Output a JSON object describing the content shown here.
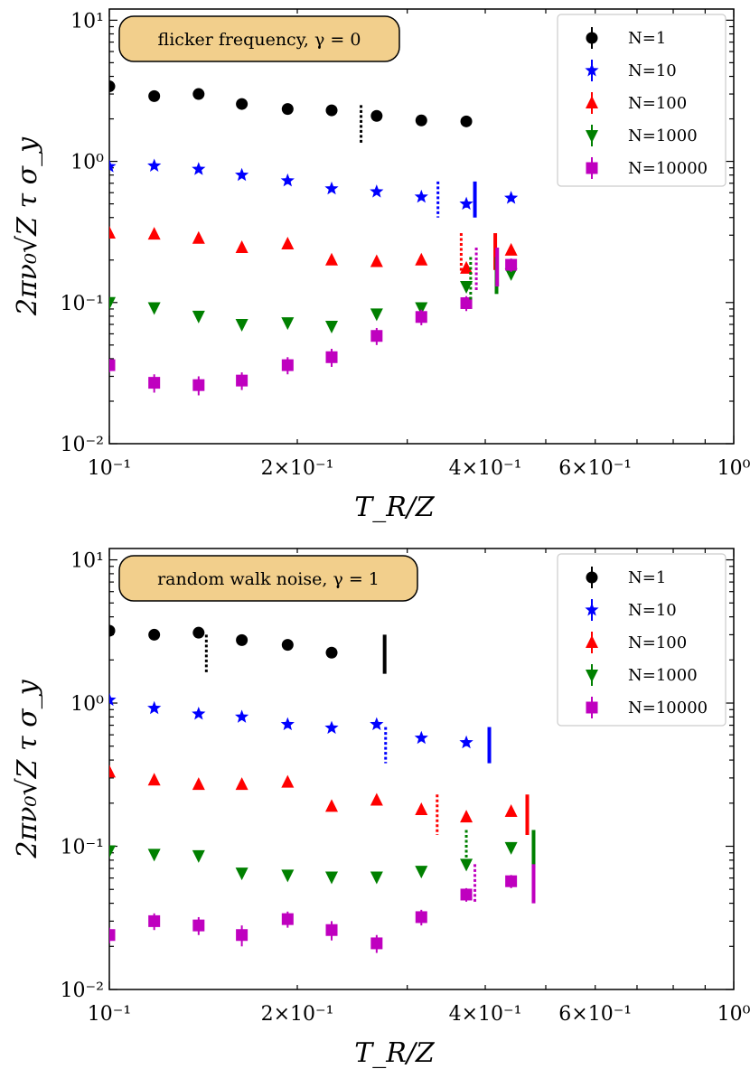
{
  "chart_data": [
    {
      "type": "scatter",
      "title": "",
      "annotation": "flicker frequency, γ = 0",
      "xlabel": "T_R/Z",
      "ylabel": "2πν₀√Z τ σ_y",
      "xscale": "log",
      "yscale": "log",
      "xlim": [
        0.1,
        1.0
      ],
      "ylim": [
        0.01,
        12
      ],
      "xtick_labels": [
        "10⁻¹",
        "2×10⁻¹",
        "4×10⁻¹",
        "6×10⁻¹",
        "10⁰"
      ],
      "xtick_values": [
        0.1,
        0.2,
        0.4,
        0.6,
        1.0
      ],
      "ytick_labels": [
        "10⁻²",
        "10⁻¹",
        "10⁰",
        "10¹"
      ],
      "ytick_values": [
        0.01,
        0.1,
        1,
        10
      ],
      "legend_position": "upper right",
      "series": [
        {
          "name": "N=1",
          "marker": "circle",
          "color": "#000000",
          "x": [
            0.1,
            0.118,
            0.139,
            0.163,
            0.193,
            0.227,
            0.268,
            0.316,
            0.373
          ],
          "y": [
            3.4,
            2.9,
            3.0,
            2.55,
            2.35,
            2.3,
            2.1,
            1.95,
            1.92
          ],
          "err": [
            0.15,
            0.12,
            0.12,
            0.1,
            0.1,
            0.1,
            0.1,
            0.08,
            0.08
          ]
        },
        {
          "name": "N=10",
          "marker": "star",
          "color": "#0000ff",
          "x": [
            0.1,
            0.118,
            0.139,
            0.163,
            0.193,
            0.227,
            0.268,
            0.316,
            0.373,
            0.44
          ],
          "y": [
            0.92,
            0.93,
            0.88,
            0.8,
            0.73,
            0.64,
            0.61,
            0.56,
            0.5,
            0.55
          ],
          "err": [
            0.04,
            0.04,
            0.04,
            0.04,
            0.04,
            0.03,
            0.03,
            0.03,
            0.03,
            0.03
          ]
        },
        {
          "name": "N=100",
          "marker": "triangle-up",
          "color": "#ff0000",
          "x": [
            0.1,
            0.118,
            0.139,
            0.163,
            0.193,
            0.227,
            0.268,
            0.316,
            0.373,
            0.44
          ],
          "y": [
            0.31,
            0.305,
            0.285,
            0.245,
            0.26,
            0.2,
            0.195,
            0.2,
            0.175,
            0.235
          ],
          "err": [
            0.015,
            0.015,
            0.015,
            0.012,
            0.012,
            0.01,
            0.01,
            0.01,
            0.012,
            0.015
          ]
        },
        {
          "name": "N=1000",
          "marker": "triangle-down",
          "color": "#008000",
          "x": [
            0.1,
            0.118,
            0.139,
            0.163,
            0.193,
            0.227,
            0.268,
            0.316,
            0.373,
            0.44
          ],
          "y": [
            0.1,
            0.092,
            0.08,
            0.07,
            0.072,
            0.068,
            0.083,
            0.092,
            0.13,
            0.16
          ],
          "err": [
            0.006,
            0.006,
            0.005,
            0.005,
            0.005,
            0.005,
            0.006,
            0.006,
            0.01,
            0.012
          ]
        },
        {
          "name": "N=10000",
          "marker": "square",
          "color": "#bf00bf",
          "x": [
            0.1,
            0.118,
            0.139,
            0.163,
            0.193,
            0.227,
            0.268,
            0.316,
            0.373,
            0.44
          ],
          "y": [
            0.036,
            0.027,
            0.026,
            0.028,
            0.036,
            0.041,
            0.058,
            0.079,
            0.099,
            0.185
          ],
          "err": [
            0.004,
            0.004,
            0.004,
            0.004,
            0.005,
            0.006,
            0.008,
            0.01,
            0.012,
            0.02
          ]
        }
      ],
      "vertical_markers": [
        {
          "color": "#000000",
          "style": "dotted",
          "x": 0.253,
          "y_low": 1.35,
          "y_high": 2.5
        },
        {
          "color": "#0000ff",
          "style": "dotted",
          "x": 0.336,
          "y_low": 0.4,
          "y_high": 0.72
        },
        {
          "color": "#0000ff",
          "style": "solid",
          "x": 0.385,
          "y_low": 0.4,
          "y_high": 0.72
        },
        {
          "color": "#ff0000",
          "style": "dotted",
          "x": 0.366,
          "y_low": 0.165,
          "y_high": 0.31
        },
        {
          "color": "#ff0000",
          "style": "solid",
          "x": 0.415,
          "y_low": 0.17,
          "y_high": 0.31
        },
        {
          "color": "#008000",
          "style": "dotted",
          "x": 0.379,
          "y_low": 0.105,
          "y_high": 0.21
        },
        {
          "color": "#008000",
          "style": "solid",
          "x": 0.417,
          "y_low": 0.115,
          "y_high": 0.21
        },
        {
          "color": "#bf00bf",
          "style": "dotted",
          "x": 0.387,
          "y_low": 0.12,
          "y_high": 0.245
        },
        {
          "color": "#bf00bf",
          "style": "solid",
          "x": 0.418,
          "y_low": 0.13,
          "y_high": 0.245
        }
      ]
    },
    {
      "type": "scatter",
      "title": "",
      "annotation": "random walk noise, γ = 1",
      "xlabel": "T_R/Z",
      "ylabel": "2πν₀√Z τ σ_y",
      "xscale": "log",
      "yscale": "log",
      "xlim": [
        0.1,
        1.0
      ],
      "ylim": [
        0.01,
        12
      ],
      "xtick_labels": [
        "10⁻¹",
        "2×10⁻¹",
        "4×10⁻¹",
        "6×10⁻¹",
        "10⁰"
      ],
      "xtick_values": [
        0.1,
        0.2,
        0.4,
        0.6,
        1.0
      ],
      "ytick_labels": [
        "10⁻²",
        "10⁻¹",
        "10⁰",
        "10¹"
      ],
      "ytick_values": [
        0.01,
        0.1,
        1,
        10
      ],
      "legend_position": "upper right",
      "series": [
        {
          "name": "N=1",
          "marker": "circle",
          "color": "#000000",
          "x": [
            0.1,
            0.118,
            0.139,
            0.163,
            0.193,
            0.227
          ],
          "y": [
            3.2,
            3.0,
            3.1,
            2.75,
            2.55,
            2.25
          ],
          "err": [
            0.15,
            0.12,
            0.12,
            0.1,
            0.1,
            0.1
          ]
        },
        {
          "name": "N=10",
          "marker": "star",
          "color": "#0000ff",
          "x": [
            0.1,
            0.118,
            0.139,
            0.163,
            0.193,
            0.227,
            0.268,
            0.316,
            0.373
          ],
          "y": [
            1.05,
            0.92,
            0.84,
            0.8,
            0.71,
            0.67,
            0.71,
            0.57,
            0.53
          ],
          "err": [
            0.05,
            0.04,
            0.04,
            0.04,
            0.04,
            0.03,
            0.04,
            0.03,
            0.03
          ]
        },
        {
          "name": "N=100",
          "marker": "triangle-up",
          "color": "#ff0000",
          "x": [
            0.1,
            0.118,
            0.139,
            0.163,
            0.193,
            0.227,
            0.268,
            0.316,
            0.373,
            0.44
          ],
          "y": [
            0.33,
            0.29,
            0.27,
            0.27,
            0.28,
            0.19,
            0.21,
            0.18,
            0.16,
            0.175
          ],
          "err": [
            0.015,
            0.013,
            0.013,
            0.013,
            0.013,
            0.01,
            0.01,
            0.01,
            0.01,
            0.01
          ]
        },
        {
          "name": "N=1000",
          "marker": "triangle-down",
          "color": "#008000",
          "x": [
            0.1,
            0.118,
            0.139,
            0.163,
            0.193,
            0.227,
            0.268,
            0.316,
            0.373,
            0.44
          ],
          "y": [
            0.093,
            0.088,
            0.086,
            0.065,
            0.063,
            0.061,
            0.061,
            0.067,
            0.075,
            0.098
          ],
          "err": [
            0.005,
            0.005,
            0.005,
            0.004,
            0.004,
            0.004,
            0.004,
            0.004,
            0.006,
            0.006
          ]
        },
        {
          "name": "N=10000",
          "marker": "square",
          "color": "#bf00bf",
          "x": [
            0.1,
            0.118,
            0.139,
            0.163,
            0.193,
            0.227,
            0.268,
            0.316,
            0.373,
            0.44
          ],
          "y": [
            0.024,
            0.03,
            0.028,
            0.024,
            0.031,
            0.026,
            0.021,
            0.032,
            0.046,
            0.057
          ],
          "err": [
            0.003,
            0.004,
            0.004,
            0.004,
            0.004,
            0.004,
            0.003,
            0.004,
            0.005,
            0.006
          ]
        }
      ],
      "vertical_markers": [
        {
          "color": "#000000",
          "style": "dotted",
          "x": 0.143,
          "y_low": 1.6,
          "y_high": 3.0
        },
        {
          "color": "#000000",
          "style": "solid",
          "x": 0.276,
          "y_low": 1.6,
          "y_high": 3.0
        },
        {
          "color": "#0000ff",
          "style": "dotted",
          "x": 0.277,
          "y_low": 0.38,
          "y_high": 0.68
        },
        {
          "color": "#0000ff",
          "style": "solid",
          "x": 0.406,
          "y_low": 0.38,
          "y_high": 0.68
        },
        {
          "color": "#ff0000",
          "style": "dotted",
          "x": 0.335,
          "y_low": 0.12,
          "y_high": 0.23
        },
        {
          "color": "#ff0000",
          "style": "solid",
          "x": 0.467,
          "y_low": 0.12,
          "y_high": 0.23
        },
        {
          "color": "#008000",
          "style": "dotted",
          "x": 0.373,
          "y_low": 0.07,
          "y_high": 0.13
        },
        {
          "color": "#008000",
          "style": "solid",
          "x": 0.478,
          "y_low": 0.07,
          "y_high": 0.13
        },
        {
          "color": "#bf00bf",
          "style": "dotted",
          "x": 0.385,
          "y_low": 0.04,
          "y_high": 0.075
        },
        {
          "color": "#bf00bf",
          "style": "solid",
          "x": 0.478,
          "y_low": 0.04,
          "y_high": 0.075
        }
      ]
    }
  ]
}
